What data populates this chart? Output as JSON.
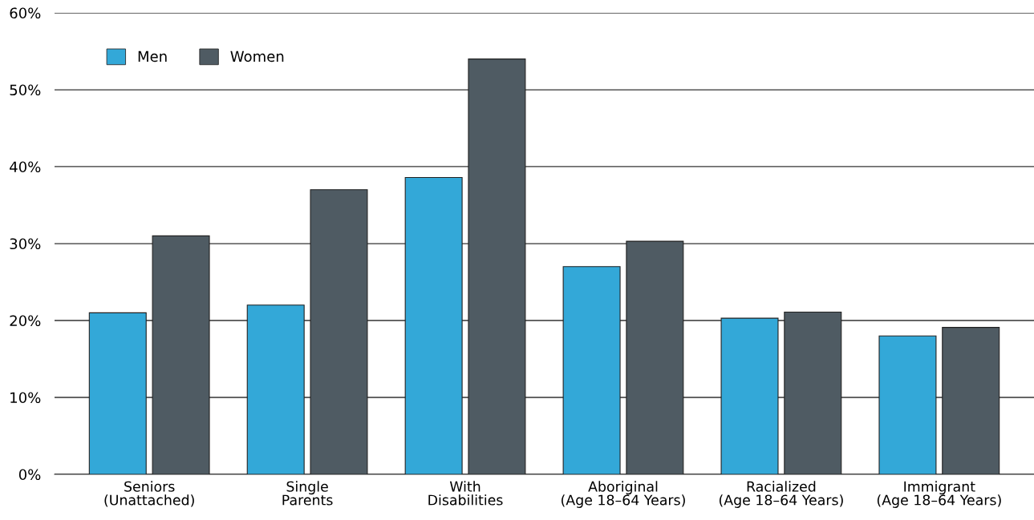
{
  "chart_data": {
    "type": "bar",
    "categories": [
      "Seniors\n(Unattached)",
      "Single\nParents",
      "With\nDisabilities",
      "Aboriginal\n(Age 18–64 Years)",
      "Racialized\n(Age 18–64 Years)",
      "Immigrant\n(Age 18–64 Years)"
    ],
    "series": [
      {
        "name": "Men",
        "color": "#33a8d8",
        "values": [
          21.0,
          22.0,
          38.6,
          27.0,
          20.3,
          18.0
        ]
      },
      {
        "name": "Women",
        "color": "#4f5b63",
        "values": [
          31.0,
          37.0,
          54.0,
          30.3,
          21.1,
          19.1
        ]
      }
    ],
    "ylim": [
      0,
      60
    ],
    "yticks": [
      {
        "value": 0,
        "label": "0%"
      },
      {
        "value": 10,
        "label": "10%"
      },
      {
        "value": 20,
        "label": "20%"
      },
      {
        "value": 30,
        "label": "30%"
      },
      {
        "value": 40,
        "label": "40%"
      },
      {
        "value": 50,
        "label": "50%"
      },
      {
        "value": 60,
        "label": "60%"
      }
    ],
    "grid": "y",
    "legend": "top left"
  }
}
